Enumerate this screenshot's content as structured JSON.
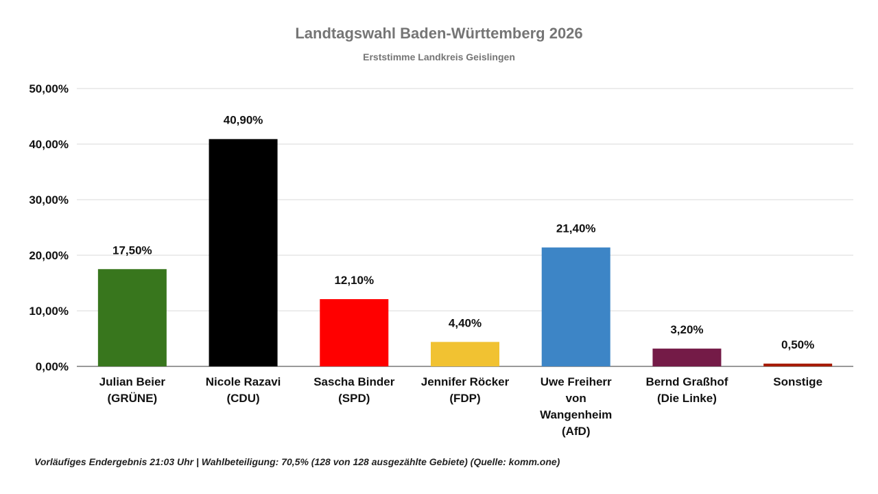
{
  "chart_data": {
    "type": "bar",
    "title": "Landtagswahl Baden-Württemberg 2026",
    "subtitle": "Erststimme Landkreis Geislingen",
    "categories": [
      [
        "Julian Beier",
        "(GRÜNE)"
      ],
      [
        "Nicole Razavi",
        "(CDU)"
      ],
      [
        "Sascha Binder",
        "(SPD)"
      ],
      [
        "Jennifer Röcker",
        "(FDP)"
      ],
      [
        "Uwe Freiherr",
        "von",
        "Wangenheim",
        "(AfD)"
      ],
      [
        "Bernd Graßhof",
        "(Die Linke)"
      ],
      [
        "Sonstige"
      ]
    ],
    "values": [
      17.5,
      40.9,
      12.1,
      4.4,
      21.4,
      3.2,
      0.5
    ],
    "value_labels": [
      "17,50%",
      "40,90%",
      "12,10%",
      "4,40%",
      "21,40%",
      "3,20%",
      "0,50%"
    ],
    "colors": [
      "#38761d",
      "#000000",
      "#ff0000",
      "#f1c232",
      "#3d85c6",
      "#741b47",
      "#a61c00"
    ],
    "ylim": [
      0,
      50
    ],
    "yticks": [
      0,
      10,
      20,
      30,
      40,
      50
    ],
    "ytick_labels": [
      "0,00%",
      "10,00%",
      "20,00%",
      "30,00%",
      "40,00%",
      "50,00%"
    ],
    "grid": true,
    "legend": "none",
    "xlabel": "",
    "ylabel": ""
  },
  "footnote": "Vorläufiges Endergebnis 21:03 Uhr | Wahlbeteiligung: 70,5% (128 von 128 ausgezählte Gebiete) (Quelle: komm.one)"
}
